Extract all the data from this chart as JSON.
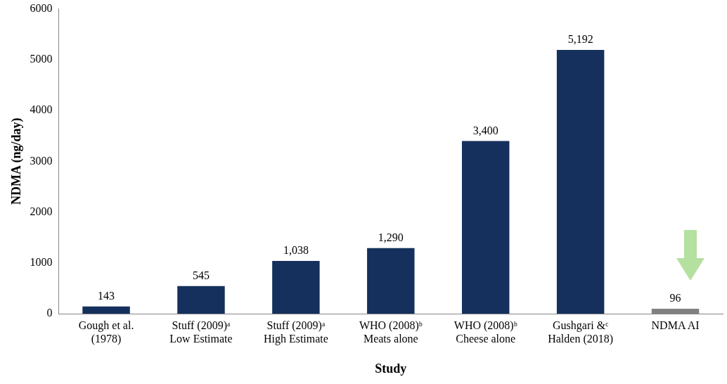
{
  "chart_data": {
    "type": "bar",
    "categories": [
      "Gough et al.\n(1978)",
      "Stuff (2009)ᵃ\nLow Estimate",
      "Stuff (2009)ᵃ\nHigh Estimate",
      "WHO (2008)ᵇ\nMeats alone",
      "WHO (2008)ᵇ\nCheese alone",
      "Gushgari &ᶜ\nHalden (2018)",
      "NDMA AI"
    ],
    "values": [
      143,
      545,
      1038,
      1290,
      3400,
      5192,
      96
    ],
    "colors": [
      "#15305c",
      "#15305c",
      "#15305c",
      "#15305c",
      "#15305c",
      "#15305c",
      "#808080"
    ],
    "value_labels": [
      "143",
      "545",
      "1,038",
      "1,290",
      "3,400",
      "5,192",
      "96"
    ],
    "xlabel": "Study",
    "ylabel": "NDMA (ng/day)",
    "ylim": [
      0,
      6000
    ],
    "yticks": [
      0,
      1000,
      2000,
      3000,
      4000,
      5000,
      6000
    ],
    "grid": false,
    "legend": false
  }
}
